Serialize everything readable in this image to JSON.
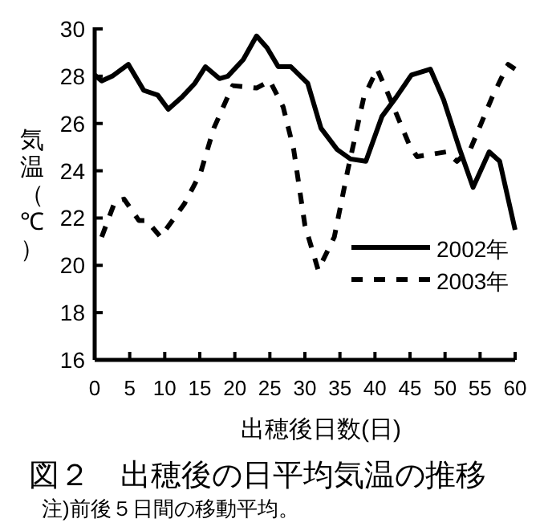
{
  "chart_data": {
    "type": "line",
    "title": "図２　出穂後の日平均気温の推移",
    "xlabel": "出穂後日数(日)",
    "ylabel": "気温（℃）",
    "annotations": [
      "注)前後５日間の移動平均。"
    ],
    "xlim": [
      0,
      60
    ],
    "xticks": [
      0,
      5,
      10,
      15,
      20,
      25,
      30,
      35,
      40,
      45,
      50,
      55,
      60
    ],
    "ylim": [
      16,
      30
    ],
    "yticks": [
      16,
      18,
      20,
      22,
      24,
      26,
      28,
      30
    ],
    "legend": "bottom right",
    "grid": false,
    "series": [
      {
        "name": "2002年",
        "color": "#000000",
        "line_style": "solid",
        "x": [
          0,
          1,
          2.5,
          4.8,
          7,
          9,
          10.5,
          12.4,
          14.3,
          15.8,
          17.8,
          19,
          21.2,
          23.1,
          24.6,
          26.2,
          28,
          30.4,
          32.3,
          34.6,
          36.5,
          38.7,
          41,
          43,
          45.2,
          47.9,
          49.8,
          52.1,
          54,
          56.3,
          57.8,
          60
        ],
        "values": [
          28.05,
          27.8,
          28.0,
          28.5,
          27.4,
          27.2,
          26.6,
          27.1,
          27.7,
          28.4,
          27.9,
          28.0,
          28.7,
          29.7,
          29.2,
          28.4,
          28.4,
          27.7,
          25.8,
          24.9,
          24.5,
          24.4,
          26.3,
          27.1,
          28.05,
          28.3,
          27.0,
          24.9,
          23.3,
          24.8,
          24.4,
          21.5
        ]
      },
      {
        "name": "2003年",
        "color": "#000000",
        "line_style": "dashed",
        "x": [
          1,
          2.9,
          4.2,
          6.3,
          7.4,
          9.4,
          12.8,
          15.1,
          17,
          19.7,
          23.1,
          25,
          26.9,
          28.4,
          30,
          31.9,
          34.2,
          36.1,
          38.4,
          40.3,
          41.8,
          44.9,
          46,
          50.2,
          51.7,
          53.6,
          56.7,
          59,
          60
        ],
        "values": [
          21.2,
          22.7,
          22.8,
          21.9,
          21.9,
          21.2,
          22.6,
          23.9,
          25.8,
          27.6,
          27.5,
          27.8,
          26.7,
          24.9,
          21.7,
          19.8,
          21.2,
          24.0,
          27.1,
          28.3,
          27.3,
          25.1,
          24.6,
          24.8,
          24.4,
          24.9,
          27.1,
          28.5,
          28.3
        ]
      }
    ]
  }
}
